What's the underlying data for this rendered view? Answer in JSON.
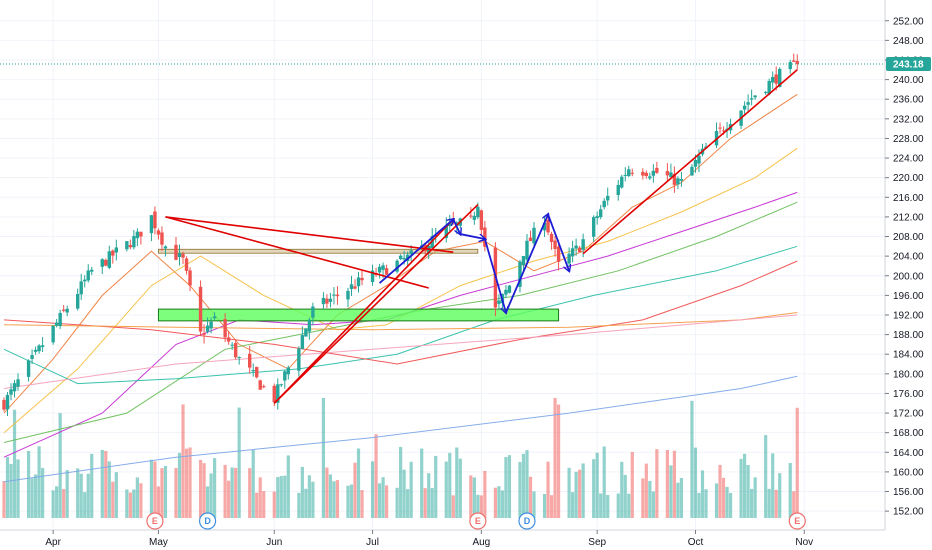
{
  "chart_data": {
    "type": "candlestick",
    "title": "",
    "price_axis": {
      "ticks": [
        "252.00",
        "248.00",
        "244.00",
        "240.00",
        "236.00",
        "232.00",
        "228.00",
        "224.00",
        "220.00",
        "216.00",
        "212.00",
        "208.00",
        "204.00",
        "200.00",
        "196.00",
        "192.00",
        "188.00",
        "184.00",
        "180.00",
        "176.00",
        "172.00",
        "168.00",
        "164.00",
        "160.00",
        "156.00",
        "152.00"
      ],
      "range": [
        150.6,
        254.6
      ],
      "last_price": "243.18"
    },
    "time_axis": {
      "labels": [
        "Apr",
        "May",
        "Jun",
        "Jul",
        "Aug",
        "Sep",
        "Oct",
        "Nov"
      ],
      "label_dates": [
        "2019-04-01",
        "2019-05-01",
        "2019-06-03",
        "2019-07-01",
        "2019-08-01",
        "2019-09-03",
        "2019-10-01",
        "2019-11-01"
      ]
    },
    "date_range": [
      "2019-03-18",
      "2019-10-30"
    ],
    "colors": {
      "up": "#26a69a",
      "down": "#ef5350",
      "trendline": "#e00000",
      "swing_arrows": "#1c1cd4",
      "zone_fill": "#5cff5c",
      "zone_border": "#1a7a1a",
      "last_price": "#26a69a"
    },
    "anchors": [
      {
        "date": "2019-03-18",
        "close": 174
      },
      {
        "date": "2019-03-29",
        "close": 186
      },
      {
        "date": "2019-04-12",
        "close": 201
      },
      {
        "date": "2019-04-25",
        "close": 208
      },
      {
        "date": "2019-04-29",
        "close": 212
      },
      {
        "date": "2019-05-03",
        "close": 206
      },
      {
        "date": "2019-05-08",
        "close": 203
      },
      {
        "date": "2019-05-13",
        "close": 188
      },
      {
        "date": "2019-05-17",
        "close": 191
      },
      {
        "date": "2019-05-24",
        "close": 183
      },
      {
        "date": "2019-05-31",
        "close": 177
      },
      {
        "date": "2019-06-03",
        "close": 175
      },
      {
        "date": "2019-06-10",
        "close": 186
      },
      {
        "date": "2019-06-14",
        "close": 193
      },
      {
        "date": "2019-06-28",
        "close": 199
      },
      {
        "date": "2019-07-12",
        "close": 204
      },
      {
        "date": "2019-07-23",
        "close": 210
      },
      {
        "date": "2019-07-29",
        "close": 211
      },
      {
        "date": "2019-07-31",
        "close": 215
      },
      {
        "date": "2019-08-02",
        "close": 206
      },
      {
        "date": "2019-08-05",
        "close": 193
      },
      {
        "date": "2019-08-09",
        "close": 198
      },
      {
        "date": "2019-08-13",
        "close": 205
      },
      {
        "date": "2019-08-19",
        "close": 212
      },
      {
        "date": "2019-08-23",
        "close": 202
      },
      {
        "date": "2019-08-29",
        "close": 206
      },
      {
        "date": "2019-09-06",
        "close": 216
      },
      {
        "date": "2019-09-12",
        "close": 222
      },
      {
        "date": "2019-09-20",
        "close": 221
      },
      {
        "date": "2019-09-27",
        "close": 219
      },
      {
        "date": "2019-10-04",
        "close": 226
      },
      {
        "date": "2019-10-11",
        "close": 232
      },
      {
        "date": "2019-10-18",
        "close": 237
      },
      {
        "date": "2019-10-25",
        "close": 241
      },
      {
        "date": "2019-10-30",
        "close": 243.18
      }
    ],
    "moving_averages": [
      {
        "color": "#f07e3c",
        "points": [
          [
            "2019-03-18",
            172
          ],
          [
            "2019-04-01",
            183
          ],
          [
            "2019-04-15",
            196
          ],
          [
            "2019-04-29",
            205
          ],
          [
            "2019-05-10",
            198
          ],
          [
            "2019-05-24",
            186
          ],
          [
            "2019-06-07",
            181
          ],
          [
            "2019-06-21",
            192
          ],
          [
            "2019-07-05",
            198
          ],
          [
            "2019-07-19",
            205
          ],
          [
            "2019-08-02",
            207
          ],
          [
            "2019-08-16",
            201
          ],
          [
            "2019-08-30",
            205
          ],
          [
            "2019-09-13",
            214
          ],
          [
            "2019-09-27",
            219
          ],
          [
            "2019-10-11",
            228
          ],
          [
            "2019-10-30",
            237
          ]
        ]
      },
      {
        "color": "#f5c042",
        "points": [
          [
            "2019-03-18",
            168
          ],
          [
            "2019-04-08",
            181
          ],
          [
            "2019-04-29",
            198
          ],
          [
            "2019-05-13",
            204
          ],
          [
            "2019-05-31",
            196
          ],
          [
            "2019-06-21",
            189
          ],
          [
            "2019-07-05",
            190
          ],
          [
            "2019-07-26",
            198
          ],
          [
            "2019-08-16",
            203
          ],
          [
            "2019-09-06",
            207
          ],
          [
            "2019-09-27",
            213
          ],
          [
            "2019-10-18",
            220
          ],
          [
            "2019-10-30",
            226
          ]
        ]
      },
      {
        "color": "#c42fd1",
        "points": [
          [
            "2019-03-18",
            163
          ],
          [
            "2019-04-15",
            172
          ],
          [
            "2019-05-06",
            186
          ],
          [
            "2019-05-24",
            191
          ],
          [
            "2019-06-14",
            190
          ],
          [
            "2019-07-05",
            191
          ],
          [
            "2019-07-26",
            196
          ],
          [
            "2019-08-16",
            200
          ],
          [
            "2019-09-06",
            204
          ],
          [
            "2019-09-27",
            209
          ],
          [
            "2019-10-18",
            214
          ],
          [
            "2019-10-30",
            217
          ]
        ]
      },
      {
        "color": "#6abf5a",
        "points": [
          [
            "2019-03-18",
            166
          ],
          [
            "2019-04-22",
            172
          ],
          [
            "2019-05-20",
            185
          ],
          [
            "2019-06-17",
            189
          ],
          [
            "2019-07-15",
            193
          ],
          [
            "2019-08-12",
            196
          ],
          [
            "2019-09-09",
            201
          ],
          [
            "2019-10-07",
            208
          ],
          [
            "2019-10-30",
            215
          ]
        ]
      },
      {
        "color": "#2fbfa8",
        "points": [
          [
            "2019-03-18",
            185
          ],
          [
            "2019-04-08",
            178
          ],
          [
            "2019-05-06",
            179
          ],
          [
            "2019-06-10",
            181
          ],
          [
            "2019-07-08",
            184
          ],
          [
            "2019-08-05",
            191
          ],
          [
            "2019-09-02",
            196
          ],
          [
            "2019-10-07",
            201
          ],
          [
            "2019-10-30",
            206
          ]
        ]
      },
      {
        "color": "#f05050",
        "points": [
          [
            "2019-03-18",
            191
          ],
          [
            "2019-04-29",
            189
          ],
          [
            "2019-06-03",
            186
          ],
          [
            "2019-07-08",
            182
          ],
          [
            "2019-08-12",
            187
          ],
          [
            "2019-09-16",
            191
          ],
          [
            "2019-10-14",
            198
          ],
          [
            "2019-10-30",
            203
          ]
        ]
      },
      {
        "color": "#f39b45",
        "points": [
          [
            "2019-03-18",
            190
          ],
          [
            "2019-05-06",
            189.5
          ],
          [
            "2019-07-01",
            189
          ],
          [
            "2019-08-26",
            189.5
          ],
          [
            "2019-10-14",
            191
          ],
          [
            "2019-10-30",
            192.5
          ]
        ]
      },
      {
        "color": "#f6a0b8",
        "points": [
          [
            "2019-03-18",
            177
          ],
          [
            "2019-05-06",
            182
          ],
          [
            "2019-07-01",
            185
          ],
          [
            "2019-08-26",
            188
          ],
          [
            "2019-10-14",
            191
          ],
          [
            "2019-10-30",
            192
          ]
        ]
      },
      {
        "color": "#7fa8ea",
        "points": [
          [
            "2019-03-18",
            158
          ],
          [
            "2019-05-06",
            163
          ],
          [
            "2019-07-01",
            167
          ],
          [
            "2019-08-26",
            172
          ],
          [
            "2019-10-14",
            177
          ],
          [
            "2019-10-30",
            179.5
          ]
        ]
      }
    ],
    "annotations": {
      "support_zone": {
        "start": "2019-05-01",
        "end": "2019-08-23",
        "low": 190.8,
        "high": 193.2
      },
      "resistance_band": {
        "start": "2019-05-01",
        "end": "2019-07-31",
        "low": 204.6,
        "high": 205.4
      },
      "trendlines": [
        {
          "from": [
            "2019-05-03",
            212.0
          ],
          "to": [
            "2019-07-24",
            204.8
          ]
        },
        {
          "from": [
            "2019-05-03",
            212.0
          ],
          "to": [
            "2019-07-17",
            197.5
          ]
        },
        {
          "from": [
            "2019-06-03",
            174.0
          ],
          "to": [
            "2019-07-24",
            211.5
          ]
        },
        {
          "from": [
            "2019-06-03",
            174.0
          ],
          "to": [
            "2019-07-31",
            214.5
          ]
        },
        {
          "from": [
            "2019-08-30",
            204.5
          ],
          "to": [
            "2019-10-30",
            242.0
          ]
        }
      ],
      "swing_arrows": [
        [
          "2019-07-03",
          198.5
        ],
        [
          "2019-07-24",
          211.5
        ],
        [
          "2019-07-26",
          208.5
        ],
        [
          "2019-08-02",
          207.5
        ],
        [
          "2019-08-08",
          192.5
        ],
        [
          "2019-08-20",
          212.5
        ],
        [
          "2019-08-26",
          201.0
        ]
      ]
    },
    "events": [
      {
        "date": "2019-04-30",
        "label": "E",
        "type": "earnings"
      },
      {
        "date": "2019-05-15",
        "label": "D",
        "type": "dividend"
      },
      {
        "date": "2019-07-31",
        "label": "E",
        "type": "earnings"
      },
      {
        "date": "2019-08-14",
        "label": "D",
        "type": "dividend"
      },
      {
        "date": "2019-10-30",
        "label": "E",
        "type": "earnings"
      }
    ]
  }
}
